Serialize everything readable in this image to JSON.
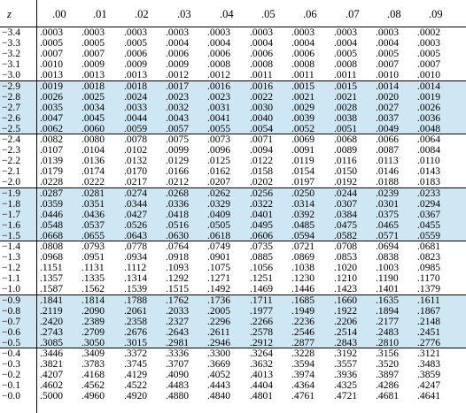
{
  "table": {
    "corner_label": "z",
    "columns": [
      ".00",
      ".01",
      ".02",
      ".03",
      ".04",
      ".05",
      ".06",
      ".07",
      ".08",
      ".09"
    ],
    "band_color": "#cfe6f3",
    "rows": [
      {
        "z": "−3.4",
        "values": [
          ".0003",
          ".0003",
          ".0003",
          ".0003",
          ".0003",
          ".0003",
          ".0003",
          ".0003",
          ".0003",
          ".0002"
        ]
      },
      {
        "z": "−3.3",
        "values": [
          ".0005",
          ".0005",
          ".0005",
          ".0004",
          ".0004",
          ".0004",
          ".0004",
          ".0004",
          ".0004",
          ".0003"
        ]
      },
      {
        "z": "−3.2",
        "values": [
          ".0007",
          ".0007",
          ".0006",
          ".0006",
          ".0006",
          ".0006",
          ".0006",
          ".0005",
          ".0005",
          ".0005"
        ]
      },
      {
        "z": "−3.1",
        "values": [
          ".0010",
          ".0009",
          ".0009",
          ".0009",
          ".0008",
          ".0008",
          ".0008",
          ".0008",
          ".0007",
          ".0007"
        ]
      },
      {
        "z": "−3.0",
        "values": [
          ".0013",
          ".0013",
          ".0013",
          ".0012",
          ".0012",
          ".0011",
          ".0011",
          ".0011",
          ".0010",
          ".0010"
        ]
      },
      {
        "z": "−2.9",
        "values": [
          ".0019",
          ".0018",
          ".0018",
          ".0017",
          ".0016",
          ".0016",
          ".0015",
          ".0015",
          ".0014",
          ".0014"
        ]
      },
      {
        "z": "−2.8",
        "values": [
          ".0026",
          ".0025",
          ".0024",
          ".0023",
          ".0023",
          ".0022",
          ".0021",
          ".0021",
          ".0020",
          ".0019"
        ]
      },
      {
        "z": "−2.7",
        "values": [
          ".0035",
          ".0034",
          ".0033",
          ".0032",
          ".0031",
          ".0030",
          ".0029",
          ".0028",
          ".0027",
          ".0026"
        ]
      },
      {
        "z": "−2.6",
        "values": [
          ".0047",
          ".0045",
          ".0044",
          ".0043",
          ".0041",
          ".0040",
          ".0039",
          ".0038",
          ".0037",
          ".0036"
        ]
      },
      {
        "z": "−2.5",
        "values": [
          ".0062",
          ".0060",
          ".0059",
          ".0057",
          ".0055",
          ".0054",
          ".0052",
          ".0051",
          ".0049",
          ".0048"
        ]
      },
      {
        "z": "−2.4",
        "values": [
          ".0082",
          ".0080",
          ".0078",
          ".0075",
          ".0073",
          ".0071",
          ".0069",
          ".0068",
          ".0066",
          ".0064"
        ]
      },
      {
        "z": "−2.3",
        "values": [
          ".0107",
          ".0104",
          ".0102",
          ".0099",
          ".0096",
          ".0094",
          ".0091",
          ".0089",
          ".0087",
          ".0084"
        ]
      },
      {
        "z": "−2.2",
        "values": [
          ".0139",
          ".0136",
          ".0132",
          ".0129",
          ".0125",
          ".0122",
          ".0119",
          ".0116",
          ".0113",
          ".0110"
        ]
      },
      {
        "z": "−2.1",
        "values": [
          ".0179",
          ".0174",
          ".0170",
          ".0166",
          ".0162",
          ".0158",
          ".0154",
          ".0150",
          ".0146",
          ".0143"
        ]
      },
      {
        "z": "−2.0",
        "values": [
          ".0228",
          ".0222",
          ".0217",
          ".0212",
          ".0207",
          ".0202",
          ".0197",
          ".0192",
          ".0188",
          ".0183"
        ]
      },
      {
        "z": "−1.9",
        "values": [
          ".0287",
          ".0281",
          ".0274",
          ".0268",
          ".0262",
          ".0256",
          ".0250",
          ".0244",
          ".0239",
          ".0233"
        ]
      },
      {
        "z": "−1.8",
        "values": [
          ".0359",
          ".0351",
          ".0344",
          ".0336",
          ".0329",
          ".0322",
          ".0314",
          ".0307",
          ".0301",
          ".0294"
        ]
      },
      {
        "z": "−1.7",
        "values": [
          ".0446",
          ".0436",
          ".0427",
          ".0418",
          ".0409",
          ".0401",
          ".0392",
          ".0384",
          ".0375",
          ".0367"
        ]
      },
      {
        "z": "−1.6",
        "values": [
          ".0548",
          ".0537",
          ".0526",
          ".0516",
          ".0505",
          ".0495",
          ".0485",
          ".0475",
          ".0465",
          ".0455"
        ]
      },
      {
        "z": "−1.5",
        "values": [
          ".0668",
          ".0655",
          ".0643",
          ".0630",
          ".0618",
          ".0606",
          ".0594",
          ".0582",
          ".0571",
          ".0559"
        ]
      },
      {
        "z": "−1.4",
        "values": [
          ".0808",
          ".0793",
          ".0778",
          ".0764",
          ".0749",
          ".0735",
          ".0721",
          ".0708",
          ".0694",
          ".0681"
        ]
      },
      {
        "z": "−1.3",
        "values": [
          ".0968",
          ".0951",
          ".0934",
          ".0918",
          ".0901",
          ".0885",
          ".0869",
          ".0853",
          ".0838",
          ".0823"
        ]
      },
      {
        "z": "−1.2",
        "values": [
          ".1151",
          ".1131",
          ".1112",
          ".1093",
          ".1075",
          ".1056",
          ".1038",
          ".1020",
          ".1003",
          ".0985"
        ]
      },
      {
        "z": "−1.1",
        "values": [
          ".1357",
          ".1335",
          ".1314",
          ".1292",
          ".1271",
          ".1251",
          ".1230",
          ".1210",
          ".1190",
          ".1170"
        ]
      },
      {
        "z": "−1.0",
        "values": [
          ".1587",
          ".1562",
          ".1539",
          ".1515",
          ".1492",
          ".1469",
          ".1446",
          ".1423",
          ".1401",
          ".1379"
        ]
      },
      {
        "z": "−0.9",
        "values": [
          ".1841",
          ".1814",
          ".1788",
          ".1762",
          ".1736",
          ".1711",
          ".1685",
          ".1660",
          ".1635",
          ".1611"
        ]
      },
      {
        "z": "−0.8",
        "values": [
          ".2119",
          ".2090",
          ".2061",
          ".2033",
          ".2005",
          ".1977",
          ".1949",
          ".1922",
          ".1894",
          ".1867"
        ]
      },
      {
        "z": "−0.7",
        "values": [
          ".2420",
          ".2389",
          ".2358",
          ".2327",
          ".2296",
          ".2266",
          ".2236",
          ".2206",
          ".2177",
          ".2148"
        ]
      },
      {
        "z": "−0.6",
        "values": [
          ".2743",
          ".2709",
          ".2676",
          ".2643",
          ".2611",
          ".2578",
          ".2546",
          ".2514",
          ".2483",
          ".2451"
        ]
      },
      {
        "z": "−0.5",
        "values": [
          ".3085",
          ".3050",
          ".3015",
          ".2981",
          ".2946",
          ".2912",
          ".2877",
          ".2843",
          ".2810",
          ".2776"
        ]
      },
      {
        "z": "−0.4",
        "values": [
          ".3446",
          ".3409",
          ".3372",
          ".3336",
          ".3300",
          ".3264",
          ".3228",
          ".3192",
          ".3156",
          ".3121"
        ]
      },
      {
        "z": "−0.3",
        "values": [
          ".3821",
          ".3783",
          ".3745",
          ".3707",
          ".3669",
          ".3632",
          ".3594",
          ".3557",
          ".3520",
          ".3483"
        ]
      },
      {
        "z": "−0.2",
        "values": [
          ".4207",
          ".4168",
          ".4129",
          ".4090",
          ".4052",
          ".4013",
          ".3974",
          ".3936",
          ".3897",
          ".3859"
        ]
      },
      {
        "z": "−0.1",
        "values": [
          ".4602",
          ".4562",
          ".4522",
          ".4483",
          ".4443",
          ".4404",
          ".4364",
          ".4325",
          ".4286",
          ".4247"
        ]
      },
      {
        "z": "−0.0",
        "values": [
          ".5000",
          ".4960",
          ".4920",
          ".4880",
          ".4840",
          ".4801",
          ".4761",
          ".4721",
          ".4681",
          ".4641"
        ]
      }
    ]
  }
}
